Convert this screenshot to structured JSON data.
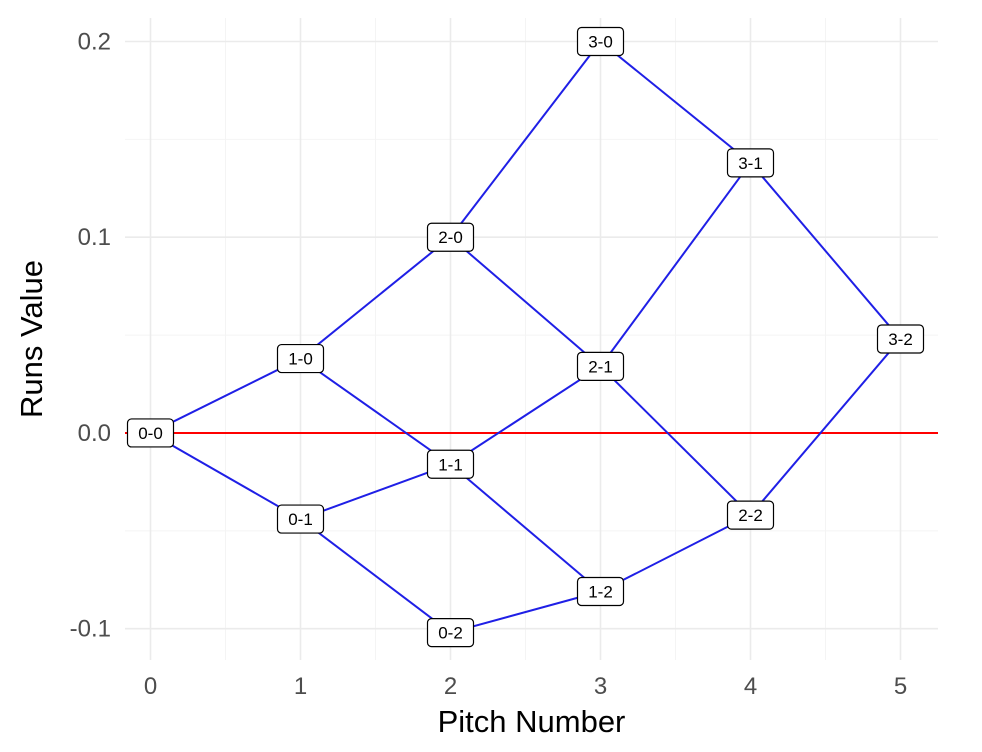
{
  "chart_data": {
    "type": "line",
    "title": "",
    "xlabel": "Pitch Number",
    "ylabel": "Runs Value",
    "xlim": [
      -0.17,
      5.25
    ],
    "ylim": [
      -0.116,
      0.212
    ],
    "x_ticks": [
      0,
      1,
      2,
      3,
      4,
      5
    ],
    "x_tick_labels": [
      "0",
      "1",
      "2",
      "3",
      "4",
      "5"
    ],
    "y_ticks": [
      -0.1,
      0.0,
      0.1,
      0.2
    ],
    "y_tick_labels": [
      "-0.1",
      "0.0",
      "0.1",
      "0.2"
    ],
    "grid": true,
    "reference_line": {
      "y": 0.0,
      "color": "#ff0000"
    },
    "edge_color": "#1f1fe6",
    "nodes": [
      {
        "label": "0-0",
        "x": 0,
        "y": 0.0
      },
      {
        "label": "1-0",
        "x": 1,
        "y": 0.038
      },
      {
        "label": "0-1",
        "x": 1,
        "y": -0.044
      },
      {
        "label": "2-0",
        "x": 2,
        "y": 0.1
      },
      {
        "label": "1-1",
        "x": 2,
        "y": -0.016
      },
      {
        "label": "0-2",
        "x": 2,
        "y": -0.102
      },
      {
        "label": "3-0",
        "x": 3,
        "y": 0.2
      },
      {
        "label": "2-1",
        "x": 3,
        "y": 0.034
      },
      {
        "label": "1-2",
        "x": 3,
        "y": -0.081
      },
      {
        "label": "3-1",
        "x": 4,
        "y": 0.138
      },
      {
        "label": "2-2",
        "x": 4,
        "y": -0.042
      },
      {
        "label": "3-2",
        "x": 5,
        "y": 0.048
      }
    ],
    "edges": [
      [
        "0-0",
        "1-0"
      ],
      [
        "0-0",
        "0-1"
      ],
      [
        "1-0",
        "2-0"
      ],
      [
        "1-0",
        "1-1"
      ],
      [
        "0-1",
        "1-1"
      ],
      [
        "0-1",
        "0-2"
      ],
      [
        "2-0",
        "3-0"
      ],
      [
        "2-0",
        "2-1"
      ],
      [
        "1-1",
        "2-1"
      ],
      [
        "1-1",
        "1-2"
      ],
      [
        "0-2",
        "1-2"
      ],
      [
        "3-0",
        "3-1"
      ],
      [
        "2-1",
        "3-1"
      ],
      [
        "2-1",
        "2-2"
      ],
      [
        "1-2",
        "2-2"
      ],
      [
        "3-1",
        "3-2"
      ],
      [
        "2-2",
        "3-2"
      ]
    ]
  }
}
